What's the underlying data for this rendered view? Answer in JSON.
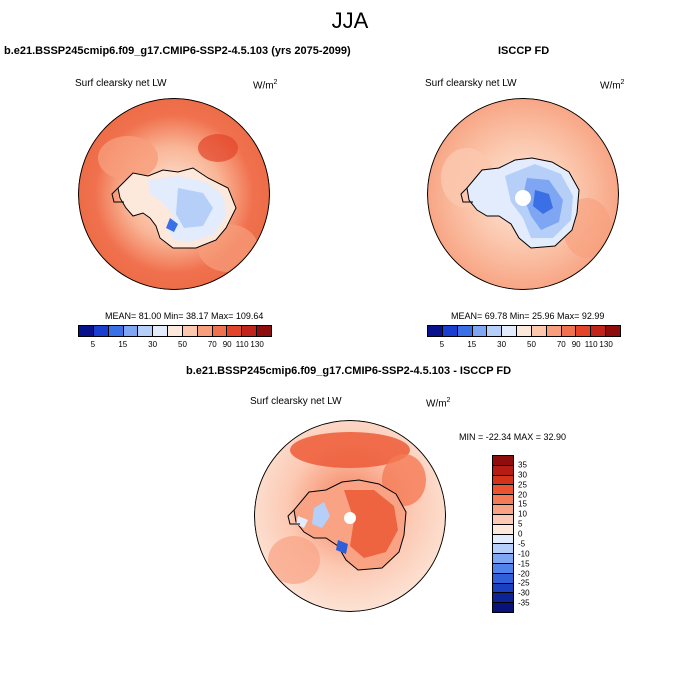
{
  "title": "JJA",
  "panels": [
    {
      "title": "b.e21.BSSP245cmip6.f09_g17.CMIP6-SSP2-4.5.103 (yrs 2075-2099)",
      "variable": "Surf clearsky net LW",
      "units_base": "W/m",
      "units_exp": "2",
      "stats": "MEAN=  81.00  Min=  38.17  Max=  109.64",
      "colorbar_labels": [
        "5",
        "15",
        "30",
        "50",
        "70",
        "90",
        "110",
        "130"
      ]
    },
    {
      "title": "ISCCP FD",
      "variable": "Surf clearsky net LW",
      "units_base": "W/m",
      "units_exp": "2",
      "stats": "MEAN=  69.78  Min=  25.96  Max=  92.99",
      "colorbar_labels": [
        "5",
        "15",
        "30",
        "50",
        "70",
        "90",
        "110",
        "130"
      ]
    },
    {
      "title": "b.e21.BSSP245cmip6.f09_g17.CMIP6-SSP2-4.5.103 - ISCCP FD",
      "variable": "Surf clearsky net LW",
      "units_base": "W/m",
      "units_exp": "2",
      "stats": "MIN = -22.34 MAX =  32.90",
      "colorbar_labels": [
        "35",
        "30",
        "25",
        "20",
        "15",
        "10",
        "5",
        "0",
        "-5",
        "-10",
        "-15",
        "-20",
        "-25",
        "-30",
        "-35"
      ]
    }
  ],
  "colors": {
    "abs_scale": [
      "#08128a",
      "#1a3fd0",
      "#3b6fe6",
      "#7ea6f2",
      "#b5cff8",
      "#e2ecfc",
      "#fde8dc",
      "#fbc7ad",
      "#f79e7c",
      "#f0714e",
      "#e2452a",
      "#c0241a",
      "#8e0d0d"
    ],
    "diff_scale": [
      "#8e0d0d",
      "#b71c14",
      "#d53319",
      "#ec5430",
      "#f57b56",
      "#f9a384",
      "#fccab4",
      "#fde8dc",
      "#e2ecfc",
      "#b5cff8",
      "#7ea6f2",
      "#4f82ea",
      "#2e5fd8",
      "#1a3fc0",
      "#0c2396",
      "#08127a"
    ]
  }
}
